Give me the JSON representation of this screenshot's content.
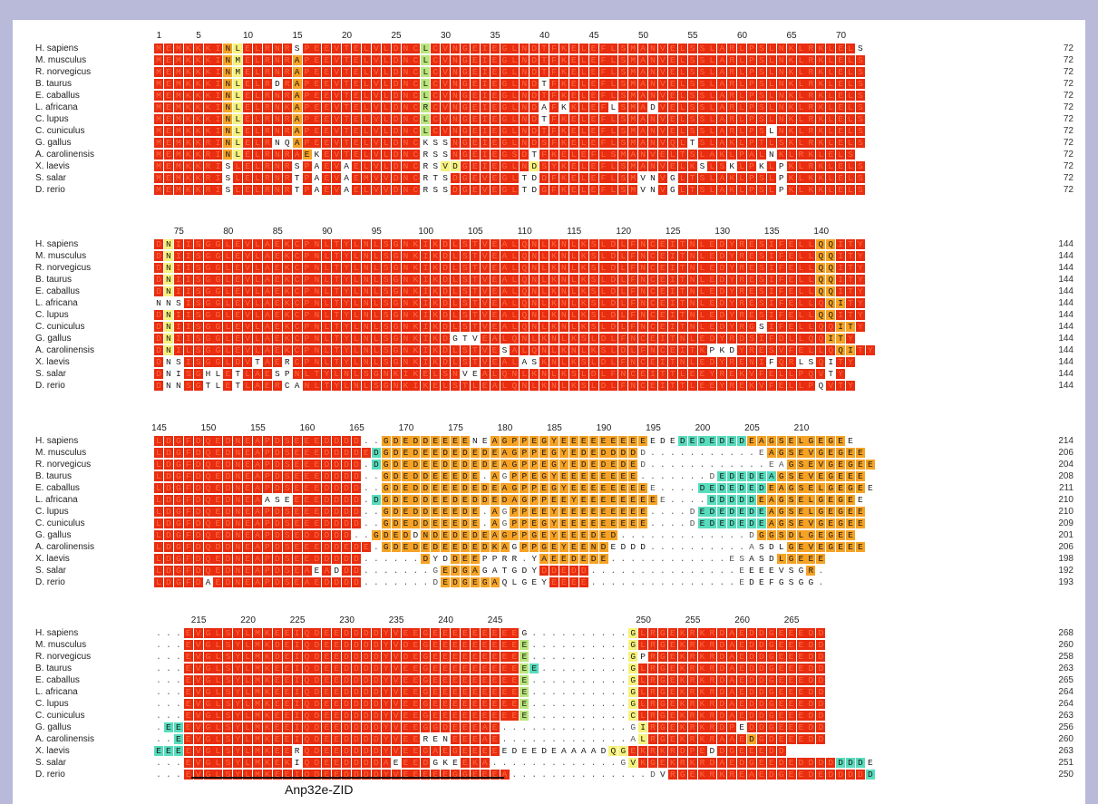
{
  "colors": {
    "frame": "#b9b9d9",
    "conserved_red": "#e82d10",
    "orange": "#f6a224",
    "yellow": "#f6f27a",
    "green": "#b9e57b",
    "teal": "#57dcbd"
  },
  "annotation": "Anp32e-ZID",
  "blocks": [
    {
      "ruler": [
        [
          "1",
          0
        ],
        [
          "5",
          4
        ],
        [
          "10",
          9
        ],
        [
          "15",
          14
        ],
        [
          "20",
          19
        ],
        [
          "25",
          24
        ],
        [
          "30",
          29
        ],
        [
          "35",
          34
        ],
        [
          "40",
          39
        ],
        [
          "45",
          44
        ],
        [
          "50",
          49
        ],
        [
          "55",
          54
        ],
        [
          "60",
          59
        ],
        [
          "65",
          64
        ],
        [
          "70",
          69
        ]
      ],
      "rows": [
        {
          "name": "H. sapiens",
          "len": "72",
          "seq": "MEMKKKINLELRNRSPEEVTELVLDNCLCVNGEIEGLNDTFKELEFLSMANVELSSLARLPSLNKLRKLELS",
          "cls": "rrrrrrroyrrrrrwrrrrrrrrrrrrgrrrrrrrrrrrrrrrrrrrrrrrrrrrrrrrrrrrrrrrrrrr"
        },
        {
          "name": "M. musculus",
          "len": "72",
          "seq": "MEMKKKINMELRNRAPEEVTELVLDNCLCVNGEIEGLNDTFKELEFLSMANVELSSLARLPSLNKLRKLELS",
          "cls": "rrrrrrroyrrrrrorrrrrrrrrrrrgrrrrrrrrrrrrrrrrrrrrrrrrrrrrrrrrrrrrrrrrrrrr"
        },
        {
          "name": "R. norvegicus",
          "len": "72",
          "seq": "MEMKKKINMELRNRAPEEVTELVLDNCLCVNGEIEGLNDTFKELEFLSMANVELSSLARLPSLNKLRKLELS",
          "cls": "rrrrrrroyrrrrrorrrrrrrrrrrrgrrrrrrrrrrrrrrrrrrrrrrrrrrrrrrrrrrrrrrrrrrrr"
        },
        {
          "name": "B. taurus",
          "len": "72",
          "seq": "MEMKKKINLELRDRAPEEVTELVLDNCLCVNGEIEGLNDTFKELEFLSMANVELSSLARLPSLNKLRKLELS",
          "cls": "rrrrrrroyrrrwrorrrrrrrrrrrrgrrrrrrrrrrrwrrrrrrrrrrrrrrrrrrrrrrrrrrrrrrrr"
        },
        {
          "name": "E. caballus",
          "len": "72",
          "seq": "MEMKKKINLELRNRAPEEVTELVLDNCLCVNGEIEGLNDTFKELEFLSMANVELSSLARLPSLNKLRKLELS",
          "cls": "rrrrrrroyrrrrrorrrrrrrrrrrrgrrrrrrrrrrrrrrrrrrrrrrrrrrrrrrrrrrrrrrrrrrrr"
        },
        {
          "name": "L. africana",
          "len": "72",
          "seq": "MEMKKKINLELRNKAPEEVTELVLDNCRCVNGEIEGLNDAFKKLEFLSMADVELSSLARLPSLNKLRKLELS",
          "cls": "rrrrrrroyrrrrrorrrrrrrrrrrrgrrrrrrrrrrrwrwrrrrwrrrwrrrrrrrrrrrrrrrrrrrrrr"
        },
        {
          "name": "C. lupus",
          "len": "72",
          "seq": "MEMKKKINLELRNRAPEEVTELVLDNCLCVNGEIEGLNDTFKELEFLSMANVELSSLARLPSLNKLRKLELS",
          "cls": "rrrrrrroyrrrrrorrrrrrrrrrrrgrrrrrrrrrrrwrrrrrrrrrrrrrrrrrrrrrrrrrrrrrrrr"
        },
        {
          "name": "C. cuniculus",
          "len": "72",
          "seq": "MEMKKKINLELRNRAPEEVTELVLDNCLCVNGEIEGLNDTFKELEFLSMANVELSSLARLPSLNKLRKLELS",
          "cls": "rrrrrrroyrrrrrorrrrrrrrrrrrgrrrrrrrrrrrrrrrrrrrrrrrrrrrrrrrrrrwrrrrrrrrr"
        },
        {
          "name": "G. gallus",
          "len": "72",
          "seq": "MEMKKRINLELRNQAPEEVTELVLDNCKSSNGEIEGLNDSFKELEFLSMANVQLTSLAKLPTLSKLRKLELS",
          "cls": "rrrrrrroyrrrwworrrrrrrrrrrrwwwrrrrrrrrrrrrrrrrrrrrrrrrwrrrrrrrrrrrrrrrrrr"
        },
        {
          "name": "A. carolinensis",
          "len": "72",
          "seq": "MEMKKRINLELRNRAEKEVTELVLDNCRSSNGEIEGSDTFKELEFLSMANVELTSLAKLPALNKLRKLELS",
          "cls": "rrrrrrroyrrrrrrowrrrrrrrrrrwwwrrrrrrrrwrrrrrrrrrrrrrrrrrrrrrrrwrrrrrrrrrr"
        },
        {
          "name": "X. laevis",
          "len": "72",
          "seq": "MEMKKRISLELRNRSPAEVAELVLDNCRSVDGEIEGLNDSYKELEFLSMANVELKSLSKLPKLPKLRKLELS",
          "cls": "rrrrrrrwrrrrrrwrwrrwrrrrrrrwwyyrrrrrrryrrrrrrrrrrrrrrrrwrrwrrwrwrrrrrrrrr"
        },
        {
          "name": "S. salar",
          "len": "72",
          "seq": "MEMKKRISLELRNRTPAEVAEMVVDNCRTSDGEVEGLTDDFKELEFLSMVNVGLTSLAKLPSLPKLKKLELS",
          "cls": "rrrrrrrwrrrrrrwrwrrwrrrrrrrwwwrrrrrrrwwrrrrrrrrrrwwrwrrrrrrrrrrwrrrrrrrrr"
        },
        {
          "name": "D. rerio",
          "len": "72",
          "seq": "MEMKKRISLELRNRTPAEVAELVVDNCRSSDGEVEGLTDGFKELEFLSMVNVGLTSLAKLPSLPKLKKLELS",
          "cls": "rrrrrrrwrrrrrrwrwrrwrrrrrrrwwwrrrrrrrwwrrrrrrrrrrwwrwrrrrrrrrrrwrrrrrrrrr"
        }
      ]
    },
    {
      "ruler": [
        [
          "75",
          2
        ],
        [
          "80",
          7
        ],
        [
          "85",
          12
        ],
        [
          "90",
          17
        ],
        [
          "95",
          22
        ],
        [
          "100",
          27
        ],
        [
          "105",
          32
        ],
        [
          "110",
          37
        ],
        [
          "115",
          42
        ],
        [
          "120",
          47
        ],
        [
          "125",
          52
        ],
        [
          "130",
          57
        ],
        [
          "135",
          62
        ],
        [
          "140",
          67
        ]
      ],
      "rows": [
        {
          "name": "H. sapiens",
          "len": "144",
          "seq": "DNIISGGLEVLAEKCPNLTYLNLSGNKIKDLSTVEALQNLKNLKSLDLFNCEITNLEDYRESIFELLQQITY",
          "cls": "ryrrrrrrrrrrrrrrrrrrrrrrrrrrrrrrrrrrrrrrrrrrrrrrrrrrrrrrrrrrrrrrrrroorrr"
        },
        {
          "name": "M. musculus",
          "len": "144",
          "seq": "DNIISGGLEVLAEKCPNLTYLNLSGNKIKDLSTVEALQNLKNLKSLDLFNCEITNLEDYRESIFELLQQITY",
          "cls": "ryrrrrrrrrrrrrrrrrrrrrrrrrrrrrrrrrrrrrrrrrrrrrrrrrrrrrrrrrrrrrrrrrroorrr"
        },
        {
          "name": "R. norvegicus",
          "len": "144",
          "seq": "DNIISGGLEVLAEKCPNLTYLNLSGNKIKDLSTVEALQNLKNLKSLDLFNCEITNLEDYRESIFELLQQITY",
          "cls": "ryrrrrrrrrrrrrrrrrrrrrrrrrrrrrrrrrrrrrrrrrrrrrrrrrrrrrrrrrrrrrrrrrroorrr"
        },
        {
          "name": "B. taurus",
          "len": "144",
          "seq": "DNIISGGLEVLAEKCPNLTYLNLSGNKIKDLSTVEALQNLKNLKSLDLFNCEITNLEDYRESIFELLQQITY",
          "cls": "ryrrrrrrrrrrrrrrrrrrrrrrrrrrrrrrrrrrrrrrrrrrrrrrrrrrrrrrrrrrrrrrrrroorrr"
        },
        {
          "name": "E. caballus",
          "len": "144",
          "seq": "DNIISGGLEVLAEKCPNLTYLNLSGNKIKDLSTVEALQNLKNLKSLDLFNCEITNLEDYRESIFELLQQITY",
          "cls": "ryrrrrrrrrrrrrrrrrrrrrrrrrrrrrrrrrrrrrrrrrrrrrrrrrrrrrrrrrrrrrrrrrroorrr"
        },
        {
          "name": "L. africana",
          "len": "144",
          "seq": "NNSISGGLEVLAEKCPNLTYLNLSGNKIKDLSTVEALQNLKNLKSLDLFNCEITNLEDYRESIFELLQQITY",
          "cls": "wwwrrrrrrrrrrrrrrrrrrrrrrrrrrrrrrrrrrrrrrrrrrrrrrrrrrrrrrrrrrrrrrrrroorrr"
        },
        {
          "name": "C. lupus",
          "len": "144",
          "seq": "DNIISGGLEVLAEKCPNLTYLNLSGNKIKDLSTVEALQNLKNLKSLDLFNCEITNLEDYRESIFELLQQITY",
          "cls": "ryrrrrrrrrrrrrrrrrrrrrrrrrrrrrrrrrrrrrrrrrrrrrrrrrrrrrrrrrrrrrrrrrroorrr"
        },
        {
          "name": "C. cuniculus",
          "len": "144",
          "seq": "DNIISGGLEVLAEKCPNLTYLNLSGNKIKDLSTVEALQNLKNLKSLDLFNCEITNLEDYRGSIFELLQQITY",
          "cls": "ryrrrrrrrrrrrrrrrrrrrrrrrrrrrrrrrrrrrrrrrrrrrrrrrrrrrrrrrrrrrwrrrrrrroorrr"
        },
        {
          "name": "G. gallus",
          "len": "144",
          "seq": "DNIISGGLEVLAEKCPNLTYLNLSGNKIKDGTVEALQNLKNLKSLDLFNCEITNLEDYRDSIFDLLQQITY",
          "cls": "ryrrrrrrrrrrrrrrrrrrrrrrrrrrrrwwwrrrrrrrrrrrrrrrrrrrrrrrrrrrrrrrrrrroorrr"
        },
        {
          "name": "A. carolinensis",
          "len": "144",
          "seq": "DNILSGGLEVLAEKCPNLTYLNLSGNKIKDLSTVESALQNLKNLKSLDLFNCEITKPKDYRESVFELLQQITY",
          "cls": "ryrrrrrrrrrrrrrrrrrrrrrrrrrrrrrrrrrwrrrrrrrrrrrrrrrrrrrrwwwrrrrrrrrrroorrr"
        },
        {
          "name": "X. laevis",
          "len": "144",
          "seq": "DNSISGGLDVTAERCPNLTYLNLSGNKIKDLSTVEALASKNLKSLDLFNCEITNLEDYRENIFQRLSQITY",
          "cls": "rwwrrrrrrrwrrwrrrrrrrrrrrrrrrrrrrrrrrwwrrrrrrrrrrrrrrrrrrrrrrrwrrwwrwrrrr"
        },
        {
          "name": "S. salar",
          "len": "144",
          "seq": "DNISGHLETLAESPNLTYLNLSGNKIKELSNVEALQNLKNLKSLDLFNCEITTLEEYREKVFELLPQVTY",
          "cls": "rwwrrwwrwrrrwwrrrrrrrrrrrrrrrrrwwrrrrrrrrrrrrrrrrrrrrrrrrrrrrrrrrrrrwrrrr"
        },
        {
          "name": "D. rerio",
          "len": "144",
          "seq": "DNNSGTLETLAERCANLTYLNLSGNKIKELSTLEALQNLKNLKSLDLFNCEITTLEEYREKVFELLPQVTY",
          "cls": "rwwrrwwrwrrrrwwrrrrrrrrrrrrrrrrrrrrrrrrrrrrrrrrrrrrrrrrrrrrrrrrrrrrwrrrr"
        }
      ]
    },
    {
      "ruler": [
        [
          "145",
          0
        ],
        [
          "150",
          5
        ],
        [
          "155",
          10
        ],
        [
          "160",
          15
        ],
        [
          "165",
          20
        ],
        [
          "170",
          25
        ],
        [
          "175",
          30
        ],
        [
          "180",
          35
        ],
        [
          "185",
          40
        ],
        [
          "190",
          45
        ],
        [
          "195",
          50
        ],
        [
          "200",
          55
        ],
        [
          "205",
          60
        ],
        [
          "210",
          65
        ]
      ],
      "rows": [
        {
          "name": "H. sapiens",
          "len": "214",
          "seq": "LDGFDQEDNEAPDSEEEDDDD..GDEDDEEEENEAGPPEGYEEEEEEEEEEDEDEDEDEDEAGSELGEGEE",
          "cls": "rrrrrrrrrrrrrrrrrrrrrddooooooooowwoooooooooooooooowwwtttttttoooooooooo"
        },
        {
          "name": "M. musculus",
          "len": "206",
          "seq": "LDGFDQEDNEAPDSEEEDDDDEDGDEDEEDEDEDEAGPPEGYEDEDDDDD...........EAGSEVGEGEE",
          "cls": "rrrrrrrrrrrrrrrrrrrrrrtoooooooooooooooooooooooooodddddddddddddoooooooooo"
        },
        {
          "name": "R. norvegicus",
          "len": "204",
          "seq": "LDGFDQEDNEAPDSEEEDDDD.DGDEDEEDEDEDEAGPPEGYEDEDEDED............EAGSEVGEGEE",
          "cls": "rrrrrrrrrrrrrrrrrrrrrdtoooooooooooooooooooooooooodddddddddddddddoooooooooo"
        },
        {
          "name": "B. taurus",
          "len": "208",
          "seq": "LDGFDQEDNEAPDSEEEDDDD..GDEDDEEEDE.AGPPEGYEEEEEEEE.......DEDEDEAGSEVEGEEE",
          "cls": "rrrrrrrrrrrrrrrrrrrrrddoooooooooooodoooooooooooooodddddddttttttoooooooooo"
        },
        {
          "name": "E. caballus",
          "len": "211",
          "seq": "LDGFDQEDNEAPDSEEEDDDD..GDEDDEEEDEDEAGPPEGYEEEEEEEEE....DEDEDEDEAGSELGEGEE",
          "cls": "rrrrrrrrrrrrrrrrrrrrrddooooooooooooooooooooooooooodddddtttttttoooooooooo"
        },
        {
          "name": "L. africana",
          "len": "210",
          "seq": "LDGFDQEDNEAASEEEEDDDD.DGDEDDEEDEDDEDAGPPEEYEEEEEEEEE....DDDDDEAGSELGEGEE",
          "cls": "rrrrrrrrrrrwwwrrrrrrrdtoooooooooooooooooooooooooooodddddtttttoooooooooo"
        },
        {
          "name": "C. lupus",
          "len": "210",
          "seq": "LDGFDQEDNEAPDSEEEDDDD..GDEDDEEEDE.AGPPEEYEEEEEEEEE....DEDEDEDEAGSELGEGEE",
          "cls": "rrrrrrrrrrrrrrrrrrrrrddoooooooooooodoooooooooooooooddddtttttttoooooooooo"
        },
        {
          "name": "C. cuniculus",
          "len": "209",
          "seq": "LDGFDQEDNEAPDSEEEDDDD..GDEDDEEEDE.AGPPEGYEEEEEEEEE....DEDEDEDEAGSEVGEGEE",
          "cls": "rrrrrrrrrrrrrrrrrrrrrddoooooooooooodoooooooooooooooddddtttttttoooooooooo"
        },
        {
          "name": "G. gallus",
          "len": "201",
          "seq": "LDGFDQEDNEAPDSEDDDDD..GDEDDNDEDEDEAGPPGEYEEEDED.............DGGSDLGEGEE",
          "cls": "rrrrrrrrrrrrrrrrrrrrddoooowooooooooooooooooooooddddddddddddddoooooooooo"
        },
        {
          "name": "A. carolinensis",
          "len": "206",
          "seq": "LDGFDQDDNEAPDSEEEDDEDE.GDEDEDEEDEDKAGPPGEYEENDEDDD..........ASDLGEVEGEEE",
          "cls": "rrrrrrrrrrrrrrrrrrrrrrdooooooooooooowooooooooowwwwdddddddddddwwwoooooooo"
        },
        {
          "name": "X. laevis",
          "len": "198",
          "seq": "LDGFDQEDNEAPDSEEDDDDD......DYDDEEPPRR.YAEEDEDE............ESASDLGEEE",
          "cls": "rrrrrrrrrrrrrrrrrrrrrddddddowwooowwwwdwoooooooddddddddddddddwwwoooooooo"
        },
        {
          "name": "S. salar",
          "len": "192",
          "seq": "LDGFDQEDNEAPDSEAEADDD.......GEDGAGATGDYDDEDD...............EEEEVSGR.",
          "cls": "rrrrrrrrrrrrrrrrwrwrrddddddddoooowwwwwwrrrrrrdddddddddddddddwwwwwwoowd"
        },
        {
          "name": "D. rerio",
          "len": "193",
          "seq": "LDGFDAEDNEAPDSEAEDDDD.......DEDGEGAQLGEYEEEE...............EDEFGSGG.",
          "cls": "rrrrrwrrrrrrrrrrrrrrrddddddddoooooowwwwwrrrrrdddddddddddddddwwwwwwwwd"
        }
      ]
    },
    {
      "ruler": [
        [
          "215",
          4
        ],
        [
          "220",
          9
        ],
        [
          "225",
          14
        ],
        [
          "230",
          19
        ],
        [
          "235",
          24
        ],
        [
          "240",
          29
        ],
        [
          "245",
          34
        ],
        [
          "250",
          49
        ],
        [
          "255",
          54
        ],
        [
          "260",
          59
        ],
        [
          "265",
          64
        ]
      ],
      "rows": [
        {
          "name": "H. sapiens",
          "len": "268",
          "seq": "...EVGLSYLMKEEIQDEEDDDDYVEEGEEEEEEEEEG..........GLRGEKRKRDAEDDGEEEDD",
          "cls": "dddrrrrrrrrrrrrrrrrrrrrrrrrrrrrrrrrrrwddddddddddyrrrrrrrrrrrrrrrrrrrr"
        },
        {
          "name": "M. musculus",
          "len": "260",
          "seq": "...EVGLSYLMKDEIQDEEDDDDYVDEGEEEEEEEEEE..........GLRGEKRKRDAEDDGEEEDD",
          "cls": "dddrrrrrrrrrrrrrrrrrrrrrrrrrrrrrrrrrrgddddddddddyrrrrrrrrrrrrrrrrrrrr"
        },
        {
          "name": "R. norvegicus",
          "len": "258",
          "seq": "...EVGLSYLMKDEIQDEEDDDDYVDEGEEEEEEEEEE..........GPRGEKRKRDAEDDGEEEDD",
          "cls": "dddrrrrrrrrrrrrrrrrrrrrrrrrrrrrrrrrrrgddddddddddywrrrrrrrrrrrrrrrrrrr"
        },
        {
          "name": "B. taurus",
          "len": "263",
          "seq": "...EVGLSYLMKEEIQDEEDDDDYVEEGEEEEEEEEEEE.........GLRGEKRKRDAEDDGEEEDD",
          "cls": "dddrrrrrrrrrrrrrrrrrrrrrrrrrrrrrrrrrrgtdddddddddyrrrrrrrrrrrrrrrrrrrr"
        },
        {
          "name": "E. caballus",
          "len": "265",
          "seq": "...EVGLSYLMKEEIQDEEDDDDYVEEGEEEEEEEEEE..........GLRGEKRKRDAEDDGEEEDD",
          "cls": "dddrrrrrrrrrrrrrrrrrrrrrrrrrrrrrrrrrrgddddddddddyrrrrrrrrrrrrrrrrrrrr"
        },
        {
          "name": "L. africana",
          "len": "264",
          "seq": "...EVGLSYLMKEEIQDEEDDDDYVEEGEEEEEEEEEE..........GLRGEKRKRDAEDDGEEEDD",
          "cls": "dddrrrrrrrrrrrrrrrrrrrrrrrrrrrrrrrrrrgddddddddddyrrrrrrrrrrrrrrrrrrrr"
        },
        {
          "name": "C. lupus",
          "len": "264",
          "seq": "...EVGLSYLMKEEIQDEEDDDDYVEEGEEEEEEEEEE..........GLRGEKRKRDAEDDGEEEDD",
          "cls": "dddrrrrrrrrrrrrrrrrrrrrrrrrrrrrrrrrrrgddddddddddyrrrrrrrrrrrrrrrrrrrr"
        },
        {
          "name": "C. cuniculus",
          "len": "263",
          "seq": "...EVGLSYLMKEEIQDEEDDDDYVEEGEEEEEEEEEE..........CLRGEKRKRDAEDDGEEEDD",
          "cls": "dddrrrrrrrrrrrrrrrrrrrrrrrrrrrrrrrrrrgddddddddddyrrrrrrrrrrrrrrrrrrrr"
        },
        {
          "name": "G. gallus",
          "len": "256",
          "seq": ".EEEVGLSYLMKEEIQDEEDDDDYVEEGGDEEEAE.............GIRGEKRKRDPEDDGEEEDD",
          "cls": "dttrrrrrrrrrrrrrrrrrrrrrrrrrrrrrrrrgdddddddddddddyrrrrrrrrrwrrrrrrrrrr"
        },
        {
          "name": "A. carolinensis",
          "len": "260",
          "seq": "..EEVGLSYLMKEEIQDEEDDDDYVEERENEEEAE.............ALRGEKRKRAAEDGDEEEDD",
          "cls": "ddtrrrrrrrrrrrrrrrrrrrrrrrrwwwrrrrrgdddddddddddddyrrrrrrrrrrorrrrrrrrrr"
        },
        {
          "name": "X. laevis",
          "len": "263",
          "seq": "EEEEVGLSYLMKEERQDEEDDDDYVEEGAEGEEEEEDEEDEAAAADQGEKRKRDPEDDGEEEDD",
          "cls": "tttrrrrrrrrrrrwrrrrrrrrrrrrrrrrrrrrwwwwwwwwwwwyyrrrrrrrrwrrrrrrrrrr"
        },
        {
          "name": "S. salar",
          "len": "251",
          "seq": "...EVGLSYLMKEKIQDEEDDDDAEEEDGKEEKA.............GVKGEKRKRDAEDGEEDEDDDDDDDE",
          "cls": "dddrrrrrrrrrrrwrrrrrrrrrwrrrwwwrrrwdddddddddddddyrrrrrrrrrrrrrrrrrrrrtttwwww"
        },
        {
          "name": "D. rerio",
          "len": "250",
          "seq": "...EVGLSYLMKEEIQDEEDDDDYVEEEEEGGEEEA..............DVRGEKRKREAEDGEEDEDDDDD",
          "cls": "dddrrrrrrrrrrrrrrrrrrrrrrrrrrrrrrrrrwddddddddddddddwrrrrrrrrrrrrrrrrrrrrttt"
        }
      ]
    }
  ]
}
